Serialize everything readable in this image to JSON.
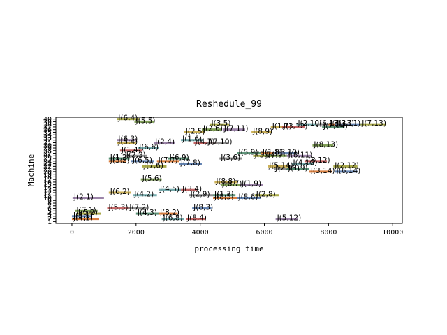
{
  "chart_data": {
    "type": "gantt",
    "title": "Reshedule_99",
    "xlabel": "processing time",
    "ylabel": "Machine",
    "xlim": [
      -500,
      10300
    ],
    "ylim": [
      0.3,
      40.7
    ],
    "xticks": [
      0,
      2000,
      4000,
      6000,
      8000,
      10000
    ],
    "yticks": [
      1,
      2,
      3,
      4,
      5,
      6,
      7,
      8,
      9,
      10,
      11,
      12,
      13,
      14,
      15,
      16,
      17,
      18,
      19,
      20,
      21,
      22,
      23,
      24,
      25,
      26,
      27,
      28,
      29,
      30,
      31,
      32,
      33,
      34,
      35,
      36,
      37,
      38,
      39,
      40
    ],
    "grid": false,
    "bar_colors": [
      "#d2691e",
      "#4a6fa5",
      "#9a9a2a",
      "#6a8e3a",
      "#8b6f9a",
      "#c2a23a",
      "#5f9ea0",
      "#b84a4a",
      "#7d7d7d",
      "#3f7f5f"
    ],
    "tasks": [
      {
        "label": "J(4,1)",
        "machine": 2,
        "start": 0,
        "end": 850
      },
      {
        "label": "J(3,1)",
        "machine": 3,
        "start": 0,
        "end": 620
      },
      {
        "label": "J(5,2)",
        "machine": 4,
        "start": 150,
        "end": 900
      },
      {
        "label": "J(7,1)",
        "machine": 5,
        "start": 100,
        "end": 800
      },
      {
        "label": "J(2,1)",
        "machine": 10,
        "start": 20,
        "end": 1000
      },
      {
        "label": "J(6,2)",
        "machine": 12,
        "start": 1150,
        "end": 1850
      },
      {
        "label": "J(4,2)",
        "machine": 11,
        "start": 1900,
        "end": 2650
      },
      {
        "label": "J(5,3)",
        "machine": 6,
        "start": 1100,
        "end": 1800
      },
      {
        "label": "J(7,2)",
        "machine": 6,
        "start": 1750,
        "end": 2350
      },
      {
        "label": "J(4,3)",
        "machine": 4,
        "start": 2000,
        "end": 2700
      },
      {
        "label": "J(8,2)",
        "machine": 4,
        "start": 2700,
        "end": 3300
      },
      {
        "label": "J(8,3)",
        "machine": 6,
        "start": 3750,
        "end": 4350
      },
      {
        "label": "J(6,4)",
        "machine": 40,
        "start": 1400,
        "end": 2100
      },
      {
        "label": "J(5,5)",
        "machine": 39,
        "start": 1950,
        "end": 2550
      },
      {
        "label": "J(6,3)",
        "machine": 32,
        "start": 1400,
        "end": 2000
      },
      {
        "label": "J(5,4)",
        "machine": 31,
        "start": 1400,
        "end": 2000
      },
      {
        "label": "J(6,6)",
        "machine": 29,
        "start": 2050,
        "end": 2700
      },
      {
        "label": "J(1,4)",
        "machine": 28,
        "start": 1500,
        "end": 2200
      },
      {
        "label": "J(2,3)",
        "machine": 26,
        "start": 1650,
        "end": 2350
      },
      {
        "label": "J(1,2)",
        "machine": 25,
        "start": 1150,
        "end": 1800
      },
      {
        "label": "J(3,2)",
        "machine": 24,
        "start": 1150,
        "end": 1700
      },
      {
        "label": "J(6,5)",
        "machine": 24,
        "start": 1850,
        "end": 2550
      },
      {
        "label": "J(7,6)",
        "machine": 22,
        "start": 2200,
        "end": 2950
      },
      {
        "label": "J(5,6)",
        "machine": 17,
        "start": 2150,
        "end": 2800
      },
      {
        "label": "J(2,4)",
        "machine": 31,
        "start": 2550,
        "end": 3200
      },
      {
        "label": "J(2,5)",
        "machine": 35,
        "start": 3500,
        "end": 4150
      },
      {
        "label": "J(1,6)",
        "machine": 32,
        "start": 3400,
        "end": 4100
      },
      {
        "label": "J(4,7)",
        "machine": 31,
        "start": 3800,
        "end": 4500
      },
      {
        "label": "J(7,10)",
        "machine": 31,
        "start": 4200,
        "end": 4900
      },
      {
        "label": "J(6,9)",
        "machine": 25,
        "start": 3000,
        "end": 3650
      },
      {
        "label": "J(7,7)",
        "machine": 24,
        "start": 2650,
        "end": 3350
      },
      {
        "label": "J(7,8)",
        "machine": 23,
        "start": 3350,
        "end": 4050
      },
      {
        "label": "J(3,5)",
        "machine": 38,
        "start": 4300,
        "end": 4900
      },
      {
        "label": "J(2,6)",
        "machine": 36,
        "start": 4050,
        "end": 4650
      },
      {
        "label": "J(7,11)",
        "machine": 36,
        "start": 4700,
        "end": 5400
      },
      {
        "label": "J(8,9)",
        "machine": 35,
        "start": 5600,
        "end": 6250
      },
      {
        "label": "J(4,5)",
        "machine": 13,
        "start": 2700,
        "end": 3400
      },
      {
        "label": "J(3,4)",
        "machine": 13,
        "start": 3400,
        "end": 3900
      },
      {
        "label": "J(2,9)",
        "machine": 11,
        "start": 3650,
        "end": 4400
      },
      {
        "label": "J(1,7)",
        "machine": 11,
        "start": 4400,
        "end": 5100
      },
      {
        "label": "J(8,5)",
        "machine": 10,
        "start": 4400,
        "end": 5150
      },
      {
        "label": "J(8,6)",
        "machine": 10,
        "start": 5150,
        "end": 5900
      },
      {
        "label": "J(2,8)",
        "machine": 11,
        "start": 5700,
        "end": 6450
      },
      {
        "label": "J(8,7)",
        "machine": 15,
        "start": 4650,
        "end": 5300
      },
      {
        "label": "J(1,9)",
        "machine": 15,
        "start": 5250,
        "end": 5950
      },
      {
        "label": "J(8,8)",
        "machine": 16,
        "start": 4450,
        "end": 5150
      },
      {
        "label": "J(6,8)",
        "machine": 2,
        "start": 2800,
        "end": 3500
      },
      {
        "label": "J(8,4)",
        "machine": 2,
        "start": 3550,
        "end": 4150
      },
      {
        "label": "J(3,6)",
        "machine": 25,
        "start": 4600,
        "end": 5300
      },
      {
        "label": "J(5,9)",
        "machine": 27,
        "start": 5150,
        "end": 5900
      },
      {
        "label": "J(1,8)",
        "machine": 27,
        "start": 5900,
        "end": 6600
      },
      {
        "label": "J(8,10)",
        "machine": 27,
        "start": 6300,
        "end": 7000
      },
      {
        "label": "J(3,7)",
        "machine": 26,
        "start": 5650,
        "end": 6300
      },
      {
        "label": "J(4,9)",
        "machine": 26,
        "start": 6000,
        "end": 6700
      },
      {
        "label": "J(8,11)",
        "machine": 26,
        "start": 6700,
        "end": 7450
      },
      {
        "label": "J(5,14)",
        "machine": 22,
        "start": 6100,
        "end": 6800
      },
      {
        "label": "J(4,10)",
        "machine": 23,
        "start": 6850,
        "end": 7550
      },
      {
        "label": "J(8,12)",
        "machine": 24,
        "start": 7250,
        "end": 7950
      },
      {
        "label": "J(2,13)",
        "machine": 21,
        "start": 6300,
        "end": 7000
      },
      {
        "label": "J(1,9)",
        "machine": 21,
        "start": 6700,
        "end": 7400
      },
      {
        "label": "J(3,14)",
        "machine": 20,
        "start": 7400,
        "end": 8100
      },
      {
        "label": "J(6,14)",
        "machine": 20,
        "start": 8200,
        "end": 8900
      },
      {
        "label": "J(2,12)",
        "machine": 22,
        "start": 8150,
        "end": 8900
      },
      {
        "label": "J(8,13)",
        "machine": 30,
        "start": 7500,
        "end": 8150
      },
      {
        "label": "J(5,12)",
        "machine": 2,
        "start": 6350,
        "end": 7050
      },
      {
        "label": "J(1,7)",
        "machine": 37,
        "start": 6200,
        "end": 6850
      },
      {
        "label": "J(2,10)",
        "machine": 38,
        "start": 7000,
        "end": 7700
      },
      {
        "label": "J(3,12)",
        "machine": 37,
        "start": 6550,
        "end": 7250
      },
      {
        "label": "J(6,13)",
        "machine": 38,
        "start": 7600,
        "end": 8350
      },
      {
        "label": "J(2,14)",
        "machine": 37,
        "start": 7800,
        "end": 8500
      },
      {
        "label": "J(4,13)",
        "machine": 38,
        "start": 8000,
        "end": 8700
      },
      {
        "label": "J(3,11)",
        "machine": 38,
        "start": 8200,
        "end": 9050
      },
      {
        "label": "J(7,13)",
        "machine": 38,
        "start": 9000,
        "end": 9800
      }
    ]
  }
}
